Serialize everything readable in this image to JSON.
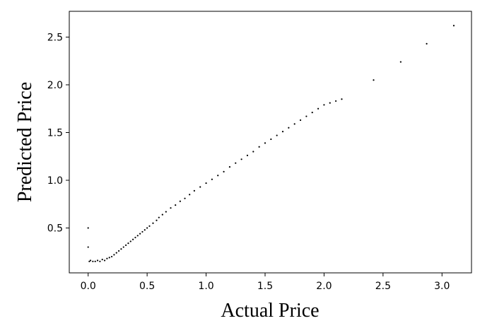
{
  "chart_data": {
    "type": "scatter",
    "title": "",
    "xlabel": "Actual Price",
    "ylabel": "Predicted Price",
    "xlim": [
      -0.16,
      3.25
    ],
    "ylim": [
      0.03,
      2.77
    ],
    "xticks": [
      {
        "value": 0.0,
        "label": "0.0"
      },
      {
        "value": 0.5,
        "label": "0.5"
      },
      {
        "value": 1.0,
        "label": "1.0"
      },
      {
        "value": 1.5,
        "label": "1.5"
      },
      {
        "value": 2.0,
        "label": "2.0"
      },
      {
        "value": 2.5,
        "label": "2.5"
      },
      {
        "value": 3.0,
        "label": "3.0"
      }
    ],
    "yticks": [
      {
        "value": 0.5,
        "label": "0.5"
      },
      {
        "value": 1.0,
        "label": "1.0"
      },
      {
        "value": 1.5,
        "label": "1.5"
      },
      {
        "value": 2.0,
        "label": "2.0"
      },
      {
        "value": 2.5,
        "label": "2.5"
      }
    ],
    "grid": false,
    "legend": "none",
    "point_color": "#000000",
    "series": [
      {
        "x": [
          0.0,
          0.0,
          0.01,
          0.02,
          0.04,
          0.06,
          0.08,
          0.1,
          0.12,
          0.14,
          0.16,
          0.18,
          0.2,
          0.22,
          0.24,
          0.26,
          0.28,
          0.3,
          0.32,
          0.34,
          0.36,
          0.38,
          0.4,
          0.42,
          0.44,
          0.46,
          0.48,
          0.5,
          0.52,
          0.55,
          0.58,
          0.6,
          0.63,
          0.66,
          0.7,
          0.74,
          0.78,
          0.82,
          0.86,
          0.9,
          0.95,
          1.0,
          1.05,
          1.1,
          1.15,
          1.2,
          1.25,
          1.3,
          1.35,
          1.4,
          1.45,
          1.5,
          1.55,
          1.6,
          1.65,
          1.7,
          1.75,
          1.8,
          1.85,
          1.9,
          1.95,
          2.0,
          2.05,
          2.1,
          2.15,
          2.42,
          2.65,
          2.87,
          3.1
        ],
        "y": [
          0.5,
          0.3,
          0.15,
          0.16,
          0.15,
          0.15,
          0.16,
          0.15,
          0.17,
          0.16,
          0.18,
          0.19,
          0.2,
          0.22,
          0.24,
          0.26,
          0.28,
          0.3,
          0.32,
          0.34,
          0.36,
          0.38,
          0.4,
          0.42,
          0.44,
          0.46,
          0.48,
          0.5,
          0.52,
          0.55,
          0.58,
          0.61,
          0.64,
          0.67,
          0.71,
          0.74,
          0.78,
          0.81,
          0.85,
          0.89,
          0.93,
          0.97,
          1.01,
          1.05,
          1.09,
          1.14,
          1.18,
          1.22,
          1.26,
          1.3,
          1.35,
          1.39,
          1.43,
          1.47,
          1.51,
          1.55,
          1.59,
          1.63,
          1.67,
          1.71,
          1.75,
          1.79,
          1.81,
          1.83,
          1.85,
          2.05,
          2.24,
          2.43,
          2.62
        ]
      }
    ]
  }
}
